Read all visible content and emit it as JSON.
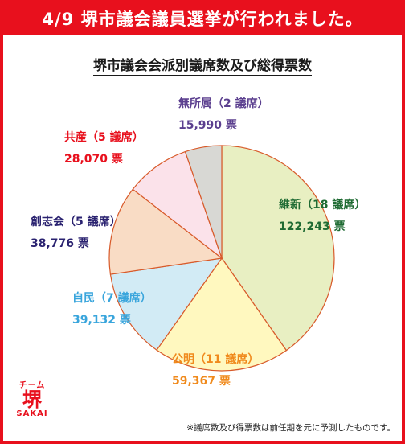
{
  "header": {
    "title": "4/9 堺市議会議員選挙が行われました。"
  },
  "chart_data": {
    "type": "pie",
    "title": "堺市議会会派別議席数及び総得票数",
    "slices": [
      {
        "party": "維新",
        "seats_label": "（18 議席）",
        "votes_label": "122,243 票",
        "votes": 122243,
        "color": "#e8efc2",
        "label_color": "#1f6b33"
      },
      {
        "party": "公明",
        "seats_label": "（11 議席）",
        "votes_label": "59,367 票",
        "votes": 59367,
        "color": "#fff8bf",
        "label_color": "#f08a1c"
      },
      {
        "party": "自民",
        "seats_label": "（7 議席）",
        "votes_label": "39,132 票",
        "votes": 39132,
        "color": "#d2ebf5",
        "label_color": "#39a5dc"
      },
      {
        "party": "創志会",
        "seats_label": "（5 議席）",
        "votes_label": "38,776 票",
        "votes": 38776,
        "color": "#f9dcc5",
        "label_color": "#2a2270"
      },
      {
        "party": "共産",
        "seats_label": "（5 議席）",
        "votes_label": "28,070 票",
        "votes": 28070,
        "color": "#fbe2ea",
        "label_color": "#e8101d"
      },
      {
        "party": "無所属",
        "seats_label": "（2 議席）",
        "votes_label": "15,990 票",
        "votes": 15990,
        "color": "#d8d8d4",
        "label_color": "#5b3f8f"
      }
    ]
  },
  "logo": {
    "line1": "チーム",
    "line2": "堺",
    "line3": "SAKAI"
  },
  "footnote": "※議席数及び得票数は前任期を元に予測したものです。"
}
